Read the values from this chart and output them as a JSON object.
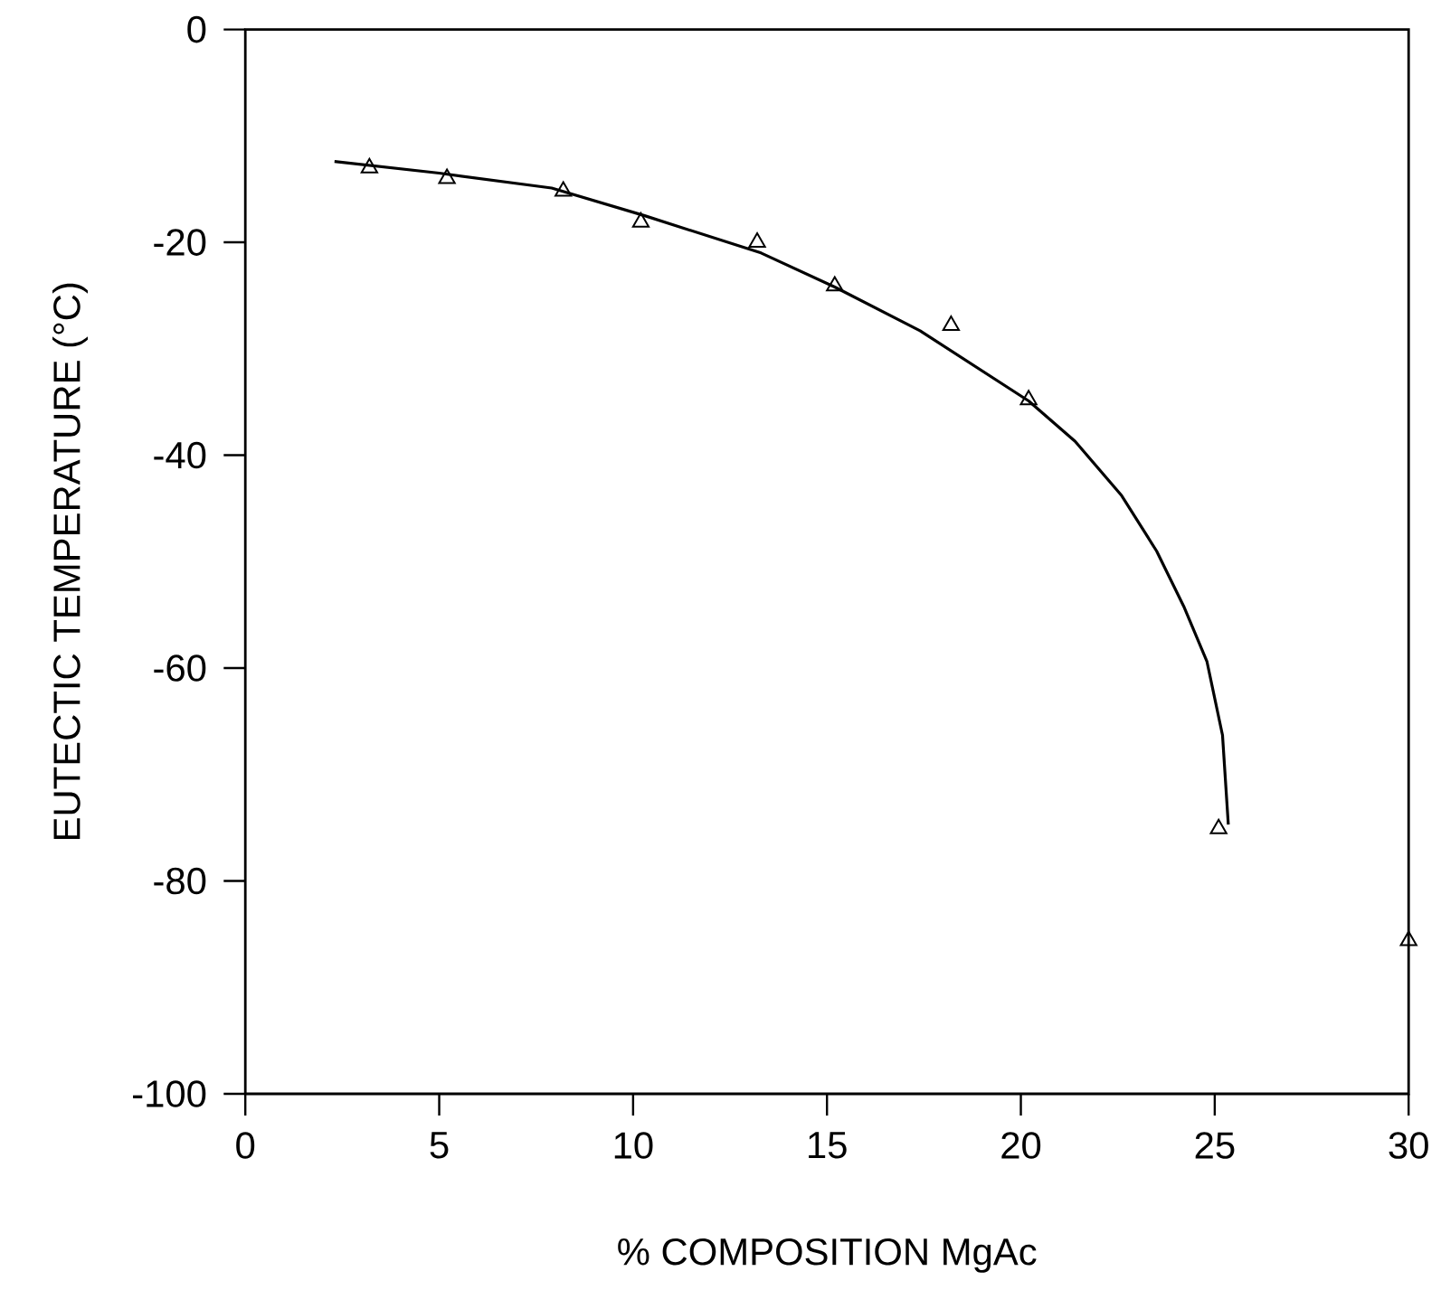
{
  "chart_data": {
    "type": "scatter",
    "xlabel": "% COMPOSITION MgAc",
    "ylabel": "EUTECTIC TEMPERATURE (°C)",
    "xlim": [
      0,
      30
    ],
    "ylim": [
      -100,
      0
    ],
    "xticks": [
      0,
      5,
      10,
      15,
      20,
      25,
      30
    ],
    "yticks": [
      -100,
      -80,
      -60,
      -40,
      -20,
      0
    ],
    "series": [
      {
        "marker": "triangle",
        "color": "#000000",
        "x": [
          3.2,
          5.2,
          8.2,
          10.2,
          13.2,
          15.2,
          18.2,
          20.2,
          25.1,
          30
        ],
        "values": [
          -13,
          -14,
          -15.2,
          -18.1,
          -20,
          -24.1,
          -27.8,
          -34.8,
          -75.1,
          -85.6
        ]
      },
      {
        "type": "line",
        "marker": "none",
        "line_style": "solid",
        "color": "#000000",
        "x": [
          2.3,
          5,
          7.9,
          10.3,
          13.3,
          15.2,
          17.4,
          20.2,
          21.4,
          22.6,
          23.5,
          24.2,
          24.8,
          25.2,
          25.35
        ],
        "values": [
          -12.4,
          -13.5,
          -14.9,
          -17.5,
          -21,
          -24.2,
          -28.3,
          -34.9,
          -38.7,
          -43.8,
          -49,
          -54.2,
          -59.4,
          -66.3,
          -74.7
        ]
      }
    ]
  }
}
